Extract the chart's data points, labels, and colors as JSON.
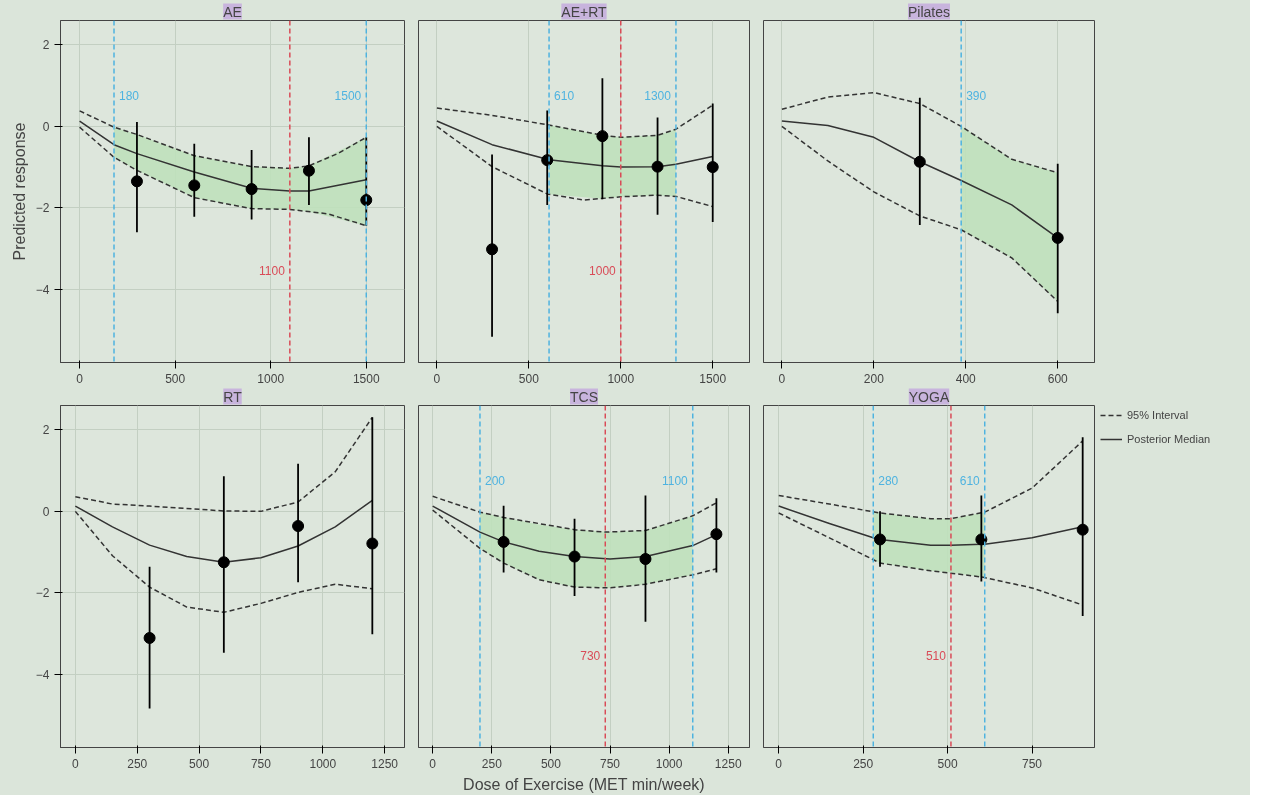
{
  "chart_data": [
    {
      "type": "line",
      "title": "AE",
      "ylabel": "Predicted response",
      "xlim": [
        -100,
        1700
      ],
      "xticks": [
        0,
        500,
        1000,
        1500
      ],
      "ylim": [
        -5.8,
        2.6
      ],
      "yticks": [
        -4,
        -2,
        0,
        2
      ],
      "grid": true,
      "series": [
        {
          "line_style": "solid",
          "color": "#333333",
          "x": [
            0,
            180,
            300,
            600,
            900,
            1100,
            1200,
            1500
          ],
          "values": [
            0.13,
            -0.45,
            -0.67,
            -1.12,
            -1.52,
            -1.59,
            -1.59,
            -1.31
          ],
          "lower": [
            null,
            -0.76,
            -1.08,
            -1.75,
            -2.02,
            -2.04,
            -2.1,
            -2.44
          ],
          "upper": [
            null,
            -0.02,
            -0.2,
            -0.72,
            -0.99,
            -1.03,
            -0.97,
            -0.27
          ]
        },
        {
          "line_style": "dashed",
          "color": "#333333",
          "x": [
            0,
            180,
            300,
            600,
            900,
            1100,
            1200,
            1350,
            1500
          ],
          "values": [
            0.38,
            -0.02,
            -0.2,
            -0.72,
            -0.99,
            -1.03,
            -0.97,
            -0.67,
            -0.27
          ]
        },
        {
          "line_style": "dashed",
          "color": "#333333",
          "x": [
            0,
            180,
            300,
            600,
            900,
            1100,
            1300,
            1500
          ],
          "values": [
            -0.02,
            -0.76,
            -1.08,
            -1.75,
            -2.02,
            -2.04,
            -2.15,
            -2.44
          ]
        },
        {
          "type": "scatter",
          "marker": "circle",
          "color": "#000000",
          "x": [
            300,
            600,
            900,
            1200,
            1500
          ],
          "values": [
            -1.35,
            -1.45,
            -1.54,
            -1.09,
            -1.81
          ],
          "errors": [
            [
              -2.6,
              0.11
            ],
            [
              -2.22,
              -0.43
            ],
            [
              -2.29,
              -0.58
            ],
            [
              -1.93,
              -0.27
            ],
            [
              -2.44,
              -0.27
            ]
          ]
        }
      ],
      "ref_lines": [
        {
          "axis": "x",
          "value": 180,
          "label": "180",
          "color": "#4eb3e0",
          "line_style": "dashed"
        },
        {
          "axis": "x",
          "value": 1500,
          "label": "1500",
          "color": "#4eb3e0",
          "line_style": "dashed"
        },
        {
          "axis": "x",
          "value": 1100,
          "label": "1100",
          "color": "#d94b57",
          "line_style": "dashed"
        }
      ]
    },
    {
      "type": "line",
      "title": "AE+RT",
      "tick_labels": "x",
      "xlim": [
        -100,
        1700
      ],
      "xticks": [
        0,
        500,
        1000,
        1500
      ],
      "ylim": [
        -5.8,
        2.6
      ],
      "grid": true,
      "series": [
        {
          "line_style": "solid",
          "color": "#333333",
          "x": [
            0,
            300,
            610,
            900,
            1000,
            1200,
            1300,
            1500
          ],
          "values": [
            0.13,
            -0.45,
            -0.82,
            -0.97,
            -1.0,
            -0.99,
            -0.93,
            -0.74
          ],
          "lower": [
            null,
            null,
            -1.67,
            -1.78,
            -1.73,
            -1.69,
            -1.72,
            null
          ],
          "upper": [
            null,
            null,
            0.03,
            -0.22,
            -0.27,
            -0.22,
            -0.07,
            null
          ]
        },
        {
          "line_style": "dashed",
          "color": "#333333",
          "x": [
            0,
            300,
            600,
            900,
            1000,
            1200,
            1300,
            1500
          ],
          "values": [
            0.45,
            0.27,
            0.04,
            -0.22,
            -0.27,
            -0.22,
            -0.07,
            0.52
          ]
        },
        {
          "line_style": "dashed",
          "color": "#333333",
          "x": [
            0,
            300,
            600,
            800,
            1000,
            1200,
            1300,
            1500
          ],
          "values": [
            0,
            -0.99,
            -1.66,
            -1.81,
            -1.73,
            -1.69,
            -1.72,
            -1.97
          ]
        },
        {
          "type": "scatter",
          "marker": "circle",
          "color": "#000000",
          "x": [
            300,
            600,
            900,
            1200,
            1500
          ],
          "values": [
            -3.02,
            -0.83,
            -0.24,
            -0.99,
            -1.0
          ],
          "errors": [
            [
              -5.17,
              -0.69
            ],
            [
              -1.93,
              0.39
            ],
            [
              -1.79,
              1.18
            ],
            [
              -2.17,
              0.22
            ],
            [
              -2.35,
              0.56
            ]
          ]
        }
      ],
      "ref_lines": [
        {
          "axis": "x",
          "value": 610,
          "label": "610",
          "color": "#4eb3e0",
          "line_style": "dashed"
        },
        {
          "axis": "x",
          "value": 1300,
          "label": "1300",
          "color": "#4eb3e0",
          "line_style": "dashed"
        },
        {
          "axis": "x",
          "value": 1000,
          "label": "1000",
          "color": "#d94b57",
          "line_style": "dashed"
        }
      ]
    },
    {
      "type": "line",
      "title": "Pilates",
      "tick_labels": "x",
      "xlim": [
        -40,
        680
      ],
      "xticks": [
        0,
        200,
        400,
        600
      ],
      "ylim": [
        -5.8,
        2.6
      ],
      "grid": true,
      "series": [
        {
          "line_style": "solid",
          "color": "#333333",
          "x": [
            0,
            100,
            200,
            300,
            390,
            500,
            600
          ],
          "values": [
            0.13,
            0.02,
            -0.27,
            -0.87,
            -1.33,
            -1.93,
            -2.74
          ],
          "lower": [
            null,
            null,
            null,
            null,
            -2.54,
            -3.23,
            -4.3
          ],
          "upper": [
            null,
            null,
            null,
            null,
            0,
            -0.81,
            -1.14
          ]
        },
        {
          "line_style": "dashed",
          "color": "#333333",
          "x": [
            0,
            100,
            200,
            300,
            390,
            500,
            600
          ],
          "values": [
            0.42,
            0.72,
            0.83,
            0.56,
            0,
            -0.81,
            -1.14
          ]
        },
        {
          "line_style": "dashed",
          "color": "#333333",
          "x": [
            0,
            100,
            200,
            300,
            390,
            500,
            600
          ],
          "values": [
            0,
            -0.85,
            -1.61,
            -2.2,
            -2.54,
            -3.23,
            -4.3
          ]
        },
        {
          "type": "scatter",
          "marker": "circle",
          "color": "#000000",
          "x": [
            300,
            600
          ],
          "values": [
            -0.87,
            -2.74
          ],
          "errors": [
            [
              -2.42,
              0.7
            ],
            [
              -4.59,
              -0.92
            ]
          ]
        }
      ],
      "ref_lines": [
        {
          "axis": "x",
          "value": 390,
          "label": "390",
          "color": "#4eb3e0",
          "line_style": "dashed"
        }
      ]
    },
    {
      "type": "line",
      "title": "RT",
      "xlim": [
        -60,
        1330
      ],
      "xticks": [
        0,
        250,
        500,
        750,
        1000,
        1250
      ],
      "ylim": [
        -5.8,
        2.6
      ],
      "yticks": [
        -4,
        -2,
        0,
        2
      ],
      "grid": true,
      "series": [
        {
          "line_style": "solid",
          "color": "#333333",
          "x": [
            0,
            150,
            300,
            450,
            600,
            750,
            900,
            1050,
            1200
          ],
          "values": [
            0.13,
            -0.38,
            -0.83,
            -1.11,
            -1.25,
            -1.14,
            -0.85,
            -0.38,
            0.27
          ]
        },
        {
          "line_style": "dashed",
          "color": "#333333",
          "x": [
            0,
            150,
            300,
            600,
            750,
            900,
            1050,
            1200
          ],
          "values": [
            0.36,
            0.18,
            0.13,
            0.01,
            0,
            0.23,
            0.97,
            2.31
          ]
        },
        {
          "line_style": "dashed",
          "color": "#333333",
          "x": [
            0,
            150,
            300,
            450,
            600,
            750,
            900,
            1050,
            1200
          ],
          "values": [
            0,
            -1.09,
            -1.86,
            -2.35,
            -2.48,
            -2.26,
            -1.99,
            -1.79,
            -1.9
          ]
        },
        {
          "type": "scatter",
          "marker": "circle",
          "color": "#000000",
          "x": [
            300,
            600,
            900,
            1200
          ],
          "values": [
            -3.11,
            -1.25,
            -0.36,
            -0.79
          ],
          "errors": [
            [
              -4.84,
              -1.36
            ],
            [
              -3.47,
              0.86
            ],
            [
              -1.74,
              1.17
            ],
            [
              -3.02,
              2.31
            ]
          ]
        }
      ]
    },
    {
      "type": "line",
      "title": "TCS",
      "xlabel": "Dose of Exercise (MET min/week)",
      "tick_labels": "x",
      "xlim": [
        -60,
        1340
      ],
      "xticks": [
        0,
        250,
        500,
        750,
        1000,
        1250
      ],
      "ylim": [
        -5.8,
        2.6
      ],
      "grid": true,
      "series": [
        {
          "line_style": "solid",
          "color": "#333333",
          "x": [
            0,
            200,
            300,
            450,
            600,
            750,
            900,
            1100,
            1200
          ],
          "values": [
            0.13,
            -0.51,
            -0.75,
            -0.98,
            -1.11,
            -1.17,
            -1.11,
            -0.84,
            -0.57
          ],
          "lower": [
            null,
            -0.91,
            -1.27,
            -1.68,
            -1.86,
            -1.88,
            -1.79,
            -1.56,
            null
          ],
          "upper": [
            null,
            -0.02,
            -0.15,
            -0.32,
            -0.45,
            -0.51,
            -0.47,
            -0.11,
            null
          ]
        },
        {
          "line_style": "dashed",
          "color": "#333333",
          "x": [
            0,
            200,
            300,
            600,
            730,
            900,
            1100,
            1200
          ],
          "values": [
            0.37,
            -0.02,
            -0.15,
            -0.45,
            -0.51,
            -0.47,
            -0.11,
            0.21
          ]
        },
        {
          "line_style": "dashed",
          "color": "#333333",
          "x": [
            0,
            200,
            300,
            450,
            600,
            750,
            900,
            1100,
            1200
          ],
          "values": [
            0.03,
            -0.91,
            -1.27,
            -1.68,
            -1.86,
            -1.88,
            -1.79,
            -1.56,
            -1.41
          ]
        },
        {
          "type": "scatter",
          "marker": "circle",
          "color": "#000000",
          "x": [
            300,
            600,
            900,
            1200
          ],
          "values": [
            -0.75,
            -1.11,
            -1.17,
            -0.56
          ],
          "errors": [
            [
              -1.5,
              0.14
            ],
            [
              -2.08,
              -0.18
            ],
            [
              -2.71,
              0.39
            ],
            [
              -1.5,
              0.32
            ]
          ]
        }
      ],
      "ref_lines": [
        {
          "axis": "x",
          "value": 200,
          "label": "200",
          "color": "#4eb3e0",
          "line_style": "dashed"
        },
        {
          "axis": "x",
          "value": 1100,
          "label": "1100",
          "color": "#4eb3e0",
          "line_style": "dashed"
        },
        {
          "axis": "x",
          "value": 730,
          "label": "730",
          "color": "#d94b57",
          "line_style": "dashed"
        }
      ]
    },
    {
      "type": "line",
      "title": "YOGA",
      "tick_labels": "x",
      "legend": "top right",
      "xlim": [
        -45,
        935
      ],
      "xticks": [
        0,
        250,
        500,
        750
      ],
      "ylim": [
        -5.8,
        2.6
      ],
      "grid": true,
      "series": [
        {
          "name": "Posterior Median",
          "line_style": "solid",
          "color": "#333333",
          "x": [
            0,
            150,
            280,
            300,
            450,
            510,
            600,
            610,
            750,
            900
          ],
          "values": [
            0.13,
            -0.3,
            -0.65,
            -0.69,
            -0.83,
            -0.83,
            -0.81,
            -0.81,
            -0.65,
            -0.38
          ],
          "lower": [
            null,
            null,
            -1.2,
            -1.27,
            -1.46,
            -1.5,
            -1.61,
            -1.62,
            null,
            null
          ],
          "upper": [
            null,
            null,
            -0.01,
            -0.04,
            -0.18,
            -0.18,
            -0.04,
            -0.02,
            null,
            null
          ]
        },
        {
          "name": "95% Interval",
          "line_style": "dashed",
          "color": "#333333",
          "x": [
            0,
            150,
            300,
            450,
            510,
            610,
            750,
            900
          ],
          "values": [
            0.39,
            0.18,
            -0.04,
            -0.18,
            -0.18,
            -0.02,
            0.57,
            1.73
          ]
        },
        {
          "line_style": "dashed",
          "color": "#333333",
          "x": [
            0,
            150,
            300,
            450,
            600,
            750,
            900
          ],
          "values": [
            -0.04,
            -0.65,
            -1.27,
            -1.46,
            -1.61,
            -1.88,
            -2.3
          ]
        },
        {
          "type": "scatter",
          "marker": "circle",
          "color": "#000000",
          "x": [
            300,
            600,
            900
          ],
          "values": [
            -0.69,
            -0.69,
            -0.45
          ],
          "errors": [
            [
              -1.36,
              0
            ],
            [
              -1.72,
              0.39
            ],
            [
              -2.57,
              1.82
            ]
          ]
        }
      ],
      "ref_lines": [
        {
          "axis": "x",
          "value": 280,
          "label": "280",
          "color": "#4eb3e0",
          "line_style": "dashed"
        },
        {
          "axis": "x",
          "value": 610,
          "label": "610",
          "color": "#4eb3e0",
          "line_style": "dashed"
        },
        {
          "axis": "x",
          "value": 510,
          "label": "510",
          "color": "#d94b57",
          "line_style": "dashed"
        }
      ]
    }
  ]
}
